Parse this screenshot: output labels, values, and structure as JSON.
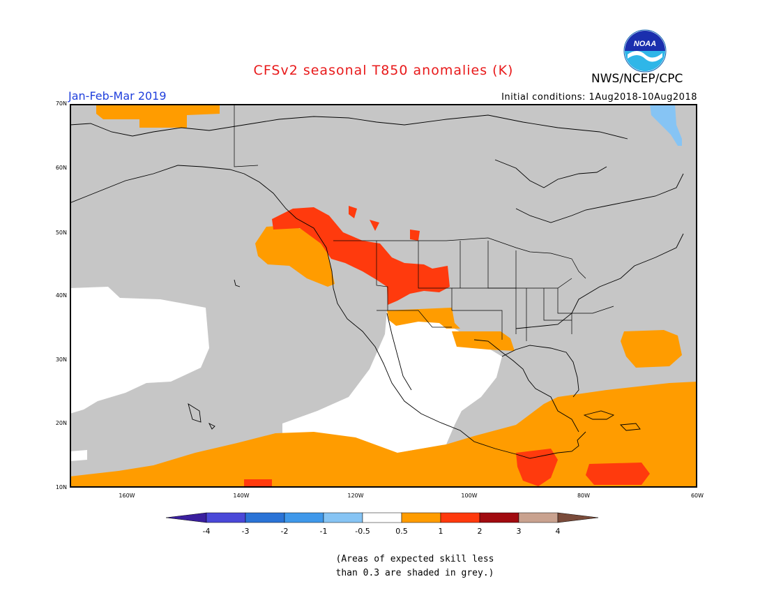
{
  "title": "CFSv2 seasonal T850 anomalies (K)",
  "agency": "NWS/NCEP/CPC",
  "logo_text": "NOAA",
  "period": "Jan-Feb-Mar 2019",
  "initial_conditions": "Initial conditions: 1Aug2018-10Aug2018",
  "axes": {
    "lat_ticks": [
      "70N",
      "60N",
      "50N",
      "40N",
      "30N",
      "20N",
      "10N"
    ],
    "lon_ticks": [
      "160W",
      "140W",
      "120W",
      "100W",
      "80W",
      "60W"
    ]
  },
  "colorbar": {
    "labels": [
      "-4",
      "-3",
      "-2",
      "-1",
      "-0.5",
      "0.5",
      "1",
      "2",
      "3",
      "4"
    ],
    "colors": [
      "#3a1f9e",
      "#4a48d8",
      "#2a73d6",
      "#3f98ea",
      "#86c4f4",
      "#ffffff",
      "#ff9c00",
      "#ff3a0d",
      "#a10b10",
      "#c9a28f",
      "#7a4b3a"
    ]
  },
  "note_lines": [
    "(Areas of expected skill less",
    "than 0.3 are shaded in grey.)"
  ],
  "map_colors": {
    "grey": "#c6c6c6",
    "white": "#ffffff",
    "orange": "#ff9c00",
    "red": "#ff3a0d",
    "lightblue": "#86c4f4"
  }
}
